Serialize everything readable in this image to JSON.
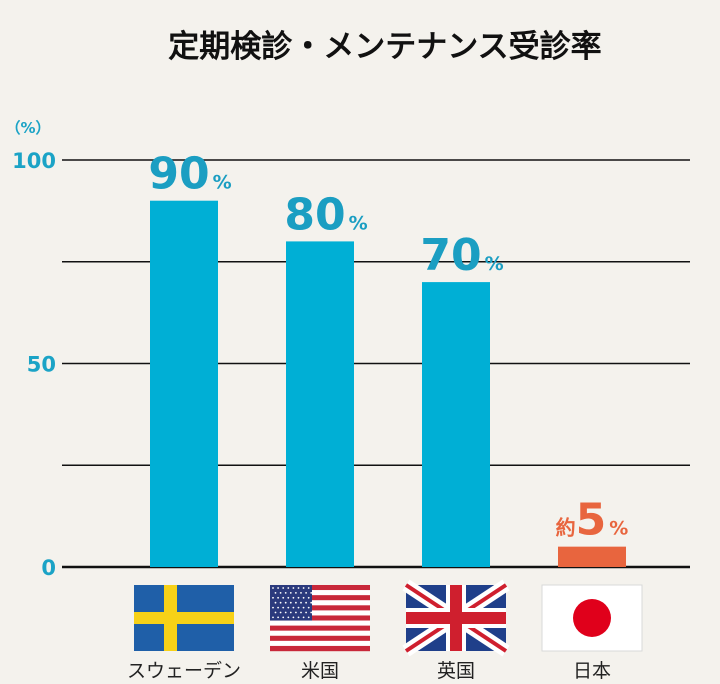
{
  "chart_data": {
    "type": "bar",
    "title": "定期検診・メンテナンス受診率",
    "unit_label": "（%）",
    "ylim": [
      0,
      100
    ],
    "yticks": [
      0,
      50,
      100
    ],
    "grid": true,
    "categories": [
      "スウェーデン",
      "米国",
      "英国",
      "日本"
    ],
    "values": [
      90,
      80,
      70,
      5
    ],
    "value_labels": [
      {
        "prefix": "",
        "number": "90",
        "suffix": "%"
      },
      {
        "prefix": "",
        "number": "80",
        "suffix": "%"
      },
      {
        "prefix": "",
        "number": "70",
        "suffix": "%"
      },
      {
        "prefix": "約",
        "number": "5",
        "suffix": "%"
      }
    ],
    "flags": [
      "sweden-flag",
      "usa-flag",
      "uk-flag",
      "japan-flag"
    ],
    "colors": {
      "bar": "#00afd5",
      "highlight": "#e8653e",
      "label": "#1b9ec2",
      "axis": "#111111"
    }
  }
}
